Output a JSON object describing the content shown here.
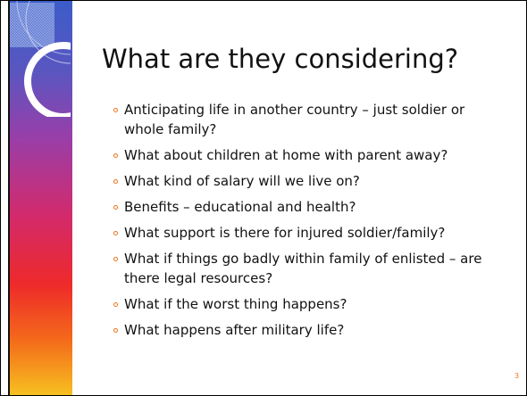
{
  "title": "What are they considering?",
  "bullets": [
    "Anticipating life in another country – just soldier or whole family?",
    "What about children at home with parent away?",
    "What kind of salary will we live on?",
    "Benefits – educational and health?",
    "What support is there for injured soldier/family?",
    "What if things go badly within family of enlisted – are there legal resources?",
    "What if the worst thing happens?",
    "What happens after military life?"
  ],
  "page_number": "3"
}
